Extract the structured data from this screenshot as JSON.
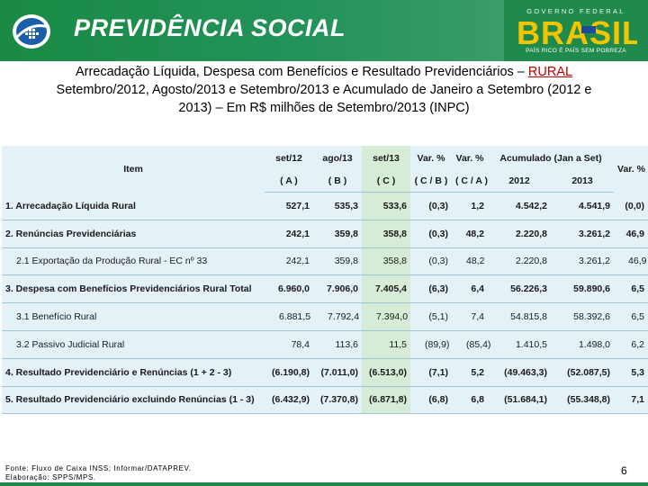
{
  "header": {
    "brand": "PREVIDÊNCIA SOCIAL",
    "gov_top": "GOVERNO FEDERAL",
    "gov_name": "BRASIL",
    "gov_slogan": "PAÍS RICO É PAÍS SEM POBREZA",
    "colors": {
      "green": "#1f8a4c",
      "yellow": "#f2c500",
      "blue": "#1f4a9c"
    }
  },
  "title": {
    "line1_prefix": "Arrecadação Líquida, Despesa com Benefícios e Resultado Previdenciários – ",
    "line1_highlight": "RURAL",
    "line2": "Setembro/2012, Agosto/2013 e Setembro/2013 e Acumulado de Janeiro a Setembro (2012 e",
    "line3": "2013) – Em R$ milhões de Setembro/2013 (INPC)"
  },
  "table": {
    "header": {
      "item": "Item",
      "set12": "set/12",
      "ago13": "ago/13",
      "set13": "set/13",
      "var_abs": "Var. %",
      "var_pct": "Var. %",
      "acumulado": "Acumulado (Jan a Set)",
      "var_acc": "Var. %",
      "code_a": "( A )",
      "code_b": "( B )",
      "code_c": "( C )",
      "code_cb": "( C / B )",
      "code_ca": "( C / A )",
      "year_2012": "2012",
      "year_2013": "2013"
    },
    "rows": [
      {
        "item": "1. Arrecadação Líquida Rural",
        "set12": "527,1",
        "ago13": "535,3",
        "set13": "533,6",
        "cb": "(0,3)",
        "ca": "1,2",
        "acc12": "4.542,2",
        "acc13": "4.541,9",
        "var": "(0,0)"
      },
      {
        "item": "2. Renúncias Previdenciárias",
        "set12": "242,1",
        "ago13": "359,8",
        "set13": "358,8",
        "cb": "(0,3)",
        "ca": "48,2",
        "acc12": "2.220,8",
        "acc13": "3.261,2",
        "var": "46,9"
      },
      {
        "item": "2.1 Exportação da Produção Rural - EC nº 33",
        "set12": "242,1",
        "ago13": "359,8",
        "set13": "358,8",
        "cb": "(0,3)",
        "ca": "48,2",
        "acc12": "2.220,8",
        "acc13": "3.261,2",
        "var": "46,9"
      },
      {
        "item": "3. Despesa com Benefícios Previdenciários Rural Total",
        "set12": "6.960,0",
        "ago13": "7.906,0",
        "set13": "7.405,4",
        "cb": "(6,3)",
        "ca": "6,4",
        "acc12": "56.226,3",
        "acc13": "59.890,6",
        "var": "6,5"
      },
      {
        "item": "3.1 Benefício Rural",
        "set12": "6.881,5",
        "ago13": "7.792,4",
        "set13": "7.394,0",
        "cb": "(5,1)",
        "ca": "7,4",
        "acc12": "54.815,8",
        "acc13": "58.392,6",
        "var": "6,5"
      },
      {
        "item": "3.2 Passivo Judicial Rural",
        "set12": "78,4",
        "ago13": "113,6",
        "set13": "11,5",
        "cb": "(89,9)",
        "ca": "(85,4)",
        "acc12": "1.410,5",
        "acc13": "1.498,0",
        "var": "6,2"
      },
      {
        "item": "4. Resultado Previdenciário e Renúncias (1 + 2 - 3)",
        "set12": "(6.190,8)",
        "ago13": "(7.011,0)",
        "set13": "(6.513,0)",
        "cb": "(7,1)",
        "ca": "5,2",
        "acc12": "(49.463,3)",
        "acc13": "(52.087,5)",
        "var": "5,3"
      },
      {
        "item": "5. Resultado Previdenciário excluindo Renúncias (1 - 3)",
        "set12": "(6.432,9)",
        "ago13": "(7.370,8)",
        "set13": "(6.871,8)",
        "cb": "(6,8)",
        "ca": "6,8",
        "acc12": "(51.684,1)",
        "acc13": "(55.348,8)",
        "var": "7,1"
      }
    ]
  },
  "footer": {
    "source": "Fonte: Fluxo de Caixa INSS; Informar/DATAPREV.",
    "credit": "Elaboração: SPPS/MPS.",
    "page": "6"
  }
}
